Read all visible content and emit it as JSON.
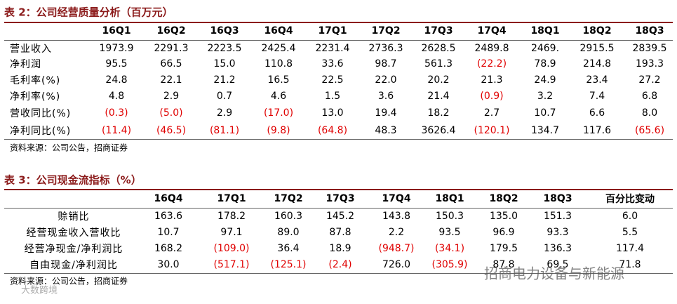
{
  "tables": [
    {
      "title": "表 2：公司经营质量分析（百万元）",
      "header": [
        "16Q1",
        "16Q2",
        "16Q3",
        "16Q4",
        "17Q1",
        "17Q2",
        "17Q3",
        "17Q4",
        "18Q1",
        "18Q2",
        "18Q3"
      ],
      "rows": [
        [
          "营业收入",
          "1973.9",
          "2291.3",
          "2223.5",
          "2425.4",
          "2231.4",
          "2736.3",
          "2628.5",
          "2489.8",
          "2469.",
          "2915.5",
          "2839.5"
        ],
        [
          "净利润",
          "95.5",
          "66.5",
          "15.0",
          "110.8",
          "33.6",
          "98.7",
          "561.3",
          "(22.2)",
          "78.9",
          "214.8",
          "193.3"
        ],
        [
          "毛利率(%)",
          "24.8",
          "22.1",
          "21.2",
          "16.5",
          "22.5",
          "22.0",
          "20.2",
          "21.3",
          "24.9",
          "23.4",
          "27.2"
        ],
        [
          "净利率(%)",
          "4.8",
          "2.9",
          "0.7",
          "4.6",
          "1.5",
          "3.6",
          "21.4",
          "(0.9)",
          "3.2",
          "7.4",
          "6.8"
        ],
        [
          "营收同比(%)",
          "(0.3)",
          "(5.0)",
          "2.9",
          "(17.0)",
          "13.0",
          "19.4",
          "18.2",
          "2.7",
          "10.7",
          "6.6",
          "8.0"
        ],
        [
          "净利同比(%)",
          "(11.4)",
          "(46.5)",
          "(81.1)",
          "(9.8)",
          "(64.8)",
          "48.3",
          "3626.4",
          "(120.1)",
          "134.7",
          "117.6",
          "(65.6)"
        ]
      ],
      "source": "资料来源：公司公告，招商证券"
    },
    {
      "title": "表 3：公司现金流指标（%）",
      "header": [
        "16Q4",
        "17Q1",
        "17Q2",
        "17Q3",
        "17Q4",
        "18Q1",
        "18Q2",
        "18Q3",
        "百分比变动"
      ],
      "rows": [
        [
          "赊销比",
          "163.6",
          "178.2",
          "160.3",
          "145.2",
          "143.8",
          "150.3",
          "135.0",
          "151.3",
          "6.0"
        ],
        [
          "经营现金收入营收比",
          "10.7",
          "97.1",
          "89.0",
          "87.8",
          "2.2",
          "93.5",
          "96.9",
          "93.3",
          "5.5"
        ],
        [
          "经营净现金/净利润比",
          "168.2",
          "(109.0)",
          "36.4",
          "18.9",
          "(948.7)",
          "(34.1)",
          "179.5",
          "136.3",
          "117.4"
        ],
        [
          "自由现金/净利润比",
          "30.0",
          "(517.1)",
          "(125.1)",
          "(2.4)",
          "726.0",
          "(305.9)",
          "87.8",
          "69.5",
          "71.8"
        ]
      ],
      "source": "资料来源：公司公告，招商证券"
    }
  ],
  "watermark": "招商电力设备与新能源",
  "watermark2": "大数跨境"
}
